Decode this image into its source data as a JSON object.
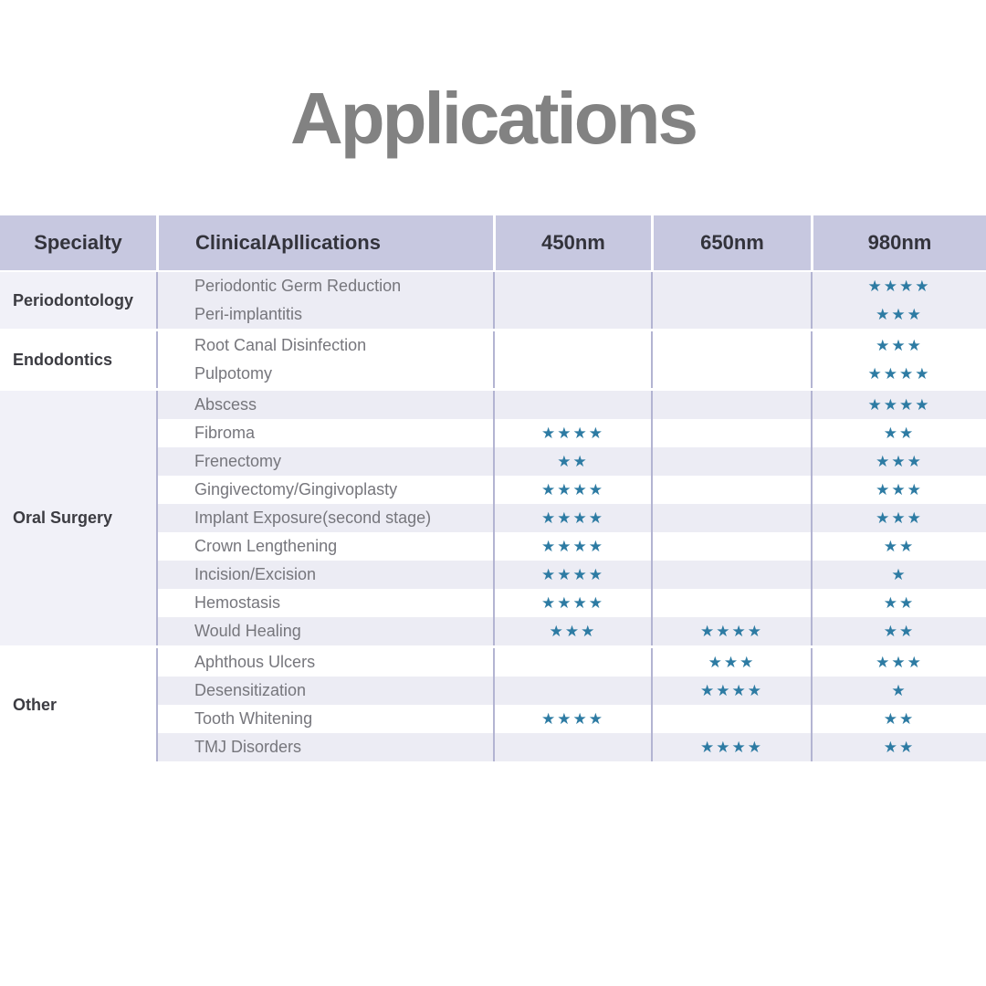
{
  "title": "Applications",
  "colors": {
    "title_text": "#828282",
    "header_bg": "#c7c8e0",
    "header_text": "#33333b",
    "row_tint": "#ececf4",
    "row_white": "#ffffff",
    "specialty_tint": "#f1f1f8",
    "divider": "#b3b4d2",
    "star": "#2d7ba3",
    "app_text": "#76767c",
    "specialty_text": "#3c3c42"
  },
  "table": {
    "star_symbol": "★",
    "columns": [
      "Specialty",
      "ClinicalApllications",
      "450nm",
      "650nm",
      "980nm"
    ],
    "groups": [
      {
        "specialty": "Periodontology",
        "tint": true,
        "rows": [
          {
            "application": "Periodontic Germ Reduction",
            "stars_450": 0,
            "stars_650": 0,
            "stars_980": 4,
            "tint": true
          },
          {
            "application": "Peri-implantitis",
            "stars_450": 0,
            "stars_650": 0,
            "stars_980": 3,
            "tint": true
          }
        ]
      },
      {
        "specialty": "Endodontics",
        "tint": false,
        "rows": [
          {
            "application": "Root Canal Disinfection",
            "stars_450": 0,
            "stars_650": 0,
            "stars_980": 3,
            "tint": false
          },
          {
            "application": "Pulpotomy",
            "stars_450": 0,
            "stars_650": 0,
            "stars_980": 4,
            "tint": false
          }
        ]
      },
      {
        "specialty": "Oral Surgery",
        "tint": true,
        "rows": [
          {
            "application": "Abscess",
            "stars_450": 0,
            "stars_650": 0,
            "stars_980": 4,
            "tint": true
          },
          {
            "application": "Fibroma",
            "stars_450": 4,
            "stars_650": 0,
            "stars_980": 2,
            "tint": false
          },
          {
            "application": "Frenectomy",
            "stars_450": 2,
            "stars_650": 0,
            "stars_980": 3,
            "tint": true
          },
          {
            "application": "Gingivectomy/Gingivoplasty",
            "stars_450": 4,
            "stars_650": 0,
            "stars_980": 3,
            "tint": false
          },
          {
            "application": "Implant Exposure(second stage)",
            "stars_450": 4,
            "stars_650": 0,
            "stars_980": 3,
            "tint": true
          },
          {
            "application": "Crown Lengthening",
            "stars_450": 4,
            "stars_650": 0,
            "stars_980": 2,
            "tint": false
          },
          {
            "application": "Incision/Excision",
            "stars_450": 4,
            "stars_650": 0,
            "stars_980": 1,
            "tint": true
          },
          {
            "application": "Hemostasis",
            "stars_450": 4,
            "stars_650": 0,
            "stars_980": 2,
            "tint": false
          },
          {
            "application": "Would Healing",
            "stars_450": 3,
            "stars_650": 4,
            "stars_980": 2,
            "tint": true
          }
        ]
      },
      {
        "specialty": "Other",
        "tint": false,
        "rows": [
          {
            "application": "Aphthous Ulcers",
            "stars_450": 0,
            "stars_650": 3,
            "stars_980": 3,
            "tint": false
          },
          {
            "application": "Desensitization",
            "stars_450": 0,
            "stars_650": 4,
            "stars_980": 1,
            "tint": true
          },
          {
            "application": "Tooth Whitening",
            "stars_450": 4,
            "stars_650": 0,
            "stars_980": 2,
            "tint": false
          },
          {
            "application": "TMJ Disorders",
            "stars_450": 0,
            "stars_650": 4,
            "stars_980": 2,
            "tint": true
          }
        ]
      }
    ]
  }
}
